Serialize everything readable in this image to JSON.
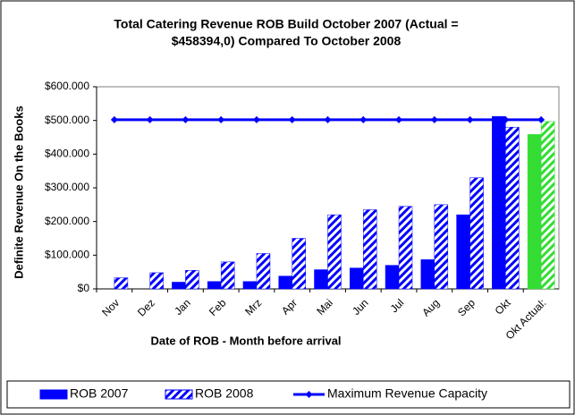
{
  "chart_data": {
    "type": "bar",
    "title": [
      "Total Catering Revenue ROB Build October 2007 (Actual =",
      "$458394,0) Compared To October 2008"
    ],
    "x_label": "Date of ROB - Month before arrival",
    "y_label": "Definite Revenue On the Books",
    "categories": [
      "Nov",
      "Dez",
      "Jan",
      "Feb",
      "Mrz",
      "Apr",
      "Mai",
      "Jun",
      "Jul",
      "Aug",
      "Sep",
      "Okt",
      "Okt Actual:"
    ],
    "series": [
      {
        "name": "ROB 2007",
        "type": "bar",
        "color": "#0000ff",
        "point_colors": {
          "12": "#33dd33"
        },
        "values": [
          0,
          0,
          20000,
          22000,
          22000,
          38000,
          57000,
          62000,
          70000,
          87000,
          220000,
          512000,
          458394
        ]
      },
      {
        "name": "ROB 2008",
        "type": "bar",
        "hatch": true,
        "color": "#0000ff",
        "point_colors": {
          "12": "#33dd33"
        },
        "values": [
          33000,
          48000,
          55000,
          80000,
          105000,
          150000,
          220000,
          235000,
          245000,
          250000,
          330000,
          480000,
          497000
        ]
      },
      {
        "name": "Maximum Revenue Capacity",
        "type": "line",
        "color": "#0000ff",
        "values": [
          502000,
          502000,
          502000,
          502000,
          502000,
          502000,
          502000,
          502000,
          502000,
          502000,
          502000,
          502000,
          502000
        ]
      }
    ],
    "ylim": [
      0,
      600000
    ],
    "yticks": [
      {
        "value": 0,
        "label": "$0"
      },
      {
        "value": 100000,
        "label": "$100.000"
      },
      {
        "value": 200000,
        "label": "$200.000"
      },
      {
        "value": 300000,
        "label": "$300.000"
      },
      {
        "value": 400000,
        "label": "$400.000"
      },
      {
        "value": 500000,
        "label": "$500.000"
      },
      {
        "value": 600000,
        "label": "$600.000"
      }
    ],
    "legend": "bottom"
  }
}
